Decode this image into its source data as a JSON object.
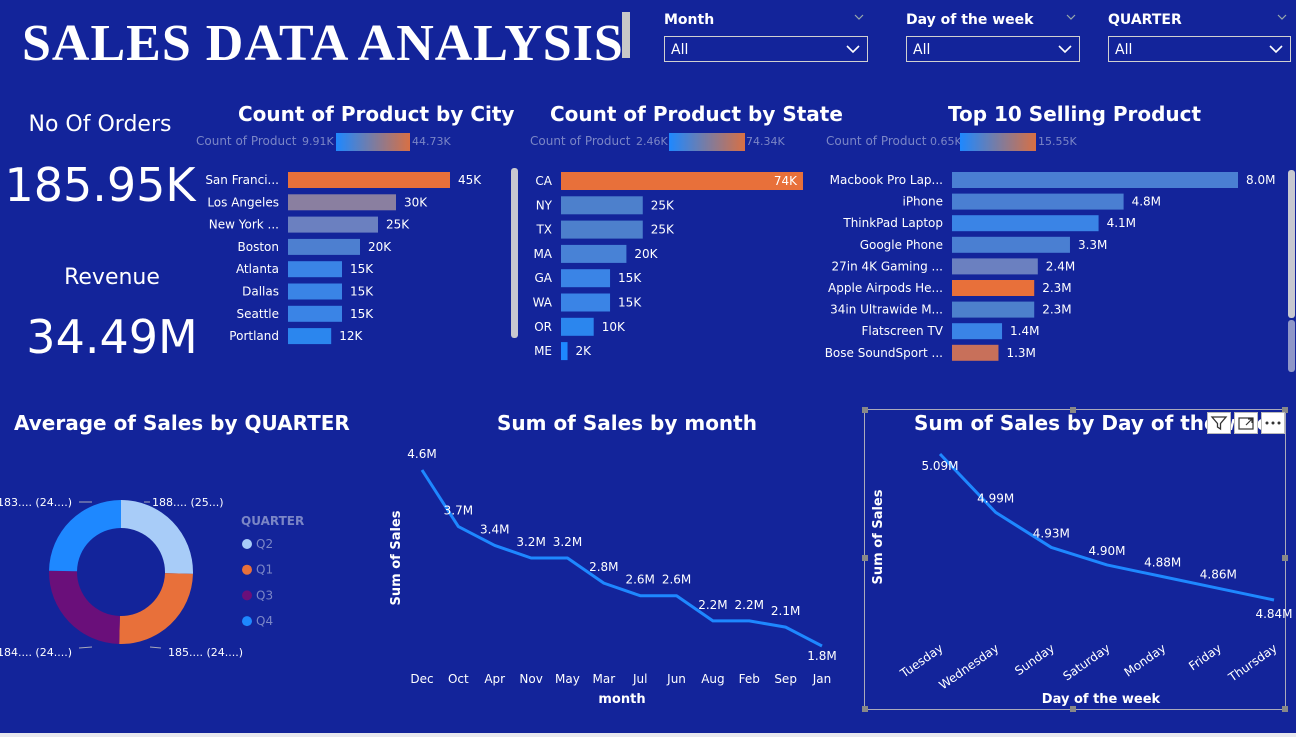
{
  "header": {
    "title": "SALES DATA ANALYSIS"
  },
  "slicers": [
    {
      "label": "Month",
      "value": "All"
    },
    {
      "label": "Day of the week",
      "value": "All"
    },
    {
      "label": "QUARTER",
      "value": "All"
    }
  ],
  "kpis": {
    "orders_label": "No Of Orders",
    "orders_value": "185.95K",
    "revenue_label": "Revenue",
    "revenue_value": "34.49M"
  },
  "colors": {
    "background": "#13249a",
    "high": "#e8703a",
    "low": "#1e88ff",
    "line": "#1e88ff"
  },
  "chart_data": [
    {
      "id": "city",
      "type": "bar",
      "orientation": "horizontal",
      "title": "Count of Product by City",
      "legend": {
        "label": "Count of Product",
        "min": "9.91K",
        "max": "44.73K"
      },
      "categories": [
        "San Franci...",
        "Los Angeles",
        "New York ...",
        "Boston",
        "Atlanta",
        "Dallas",
        "Seattle",
        "Portland"
      ],
      "values": [
        45,
        30,
        25,
        20,
        15,
        15,
        15,
        12
      ],
      "labels": [
        "45K",
        "30K",
        "25K",
        "20K",
        "15K",
        "15K",
        "15K",
        "12K"
      ],
      "colors": [
        "#e8703a",
        "#8a7fa0",
        "#6b80c0",
        "#4d7fd0",
        "#3a84e6",
        "#3a84e6",
        "#3a84e6",
        "#2b86ee"
      ],
      "xlim": [
        0,
        45
      ]
    },
    {
      "id": "state",
      "type": "bar",
      "orientation": "horizontal",
      "title": "Count of Product by State",
      "legend": {
        "label": "Count of Product",
        "min": "2.46K",
        "max": "74.34K"
      },
      "categories": [
        "CA",
        "NY",
        "TX",
        "MA",
        "GA",
        "WA",
        "OR",
        "ME"
      ],
      "values": [
        74,
        25,
        25,
        20,
        15,
        15,
        10,
        2
      ],
      "labels": [
        "74K",
        "25K",
        "25K",
        "20K",
        "15K",
        "15K",
        "10K",
        "2K"
      ],
      "colors": [
        "#e8703a",
        "#4d80cc",
        "#4d80cc",
        "#4882d6",
        "#3a84e6",
        "#3a84e6",
        "#2b86ee",
        "#1e88ff"
      ],
      "xlim": [
        0,
        74
      ]
    },
    {
      "id": "top10",
      "type": "bar",
      "orientation": "horizontal",
      "title": "Top 10 Selling Product",
      "legend": {
        "label": "Count of Product",
        "min": "0.65K",
        "max": "15.55K"
      },
      "categories": [
        "Macbook Pro Lap...",
        "iPhone",
        "ThinkPad Laptop",
        "Google Phone",
        "27in 4K Gaming ...",
        "Apple Airpods He...",
        "34in Ultrawide M...",
        "Flatscreen TV",
        "Bose SoundSport ..."
      ],
      "values": [
        8.0,
        4.8,
        4.1,
        3.3,
        2.4,
        2.3,
        2.3,
        1.4,
        1.3
      ],
      "labels": [
        "8.0M",
        "4.8M",
        "4.1M",
        "3.3M",
        "2.4M",
        "2.3M",
        "2.3M",
        "1.4M",
        "1.3M"
      ],
      "colors": [
        "#4a7fd2",
        "#4a7fd2",
        "#3a84e6",
        "#4a7fd2",
        "#6b80c0",
        "#e8703a",
        "#4d80cc",
        "#3a84e6",
        "#c8705a"
      ],
      "xlim": [
        0,
        8.0
      ]
    },
    {
      "id": "quarter",
      "type": "pie",
      "variant": "donut",
      "title": "Average of Sales by QUARTER",
      "legend_title": "QUARTER",
      "slices": [
        {
          "name": "Q2",
          "value": 188,
          "label": "188.... (25...)",
          "color": "#a8ccf8"
        },
        {
          "name": "Q1",
          "value": 185,
          "label": "185.... (24....)",
          "color": "#e8703a"
        },
        {
          "name": "Q3",
          "value": 184,
          "label": "184.... (24....)",
          "color": "#6a0f7a"
        },
        {
          "name": "Q4",
          "value": 183,
          "label": "183.... (24....)",
          "color": "#1e88ff"
        }
      ],
      "legend": [
        {
          "name": "Q2",
          "color": "#a8ccf8"
        },
        {
          "name": "Q1",
          "color": "#e8703a"
        },
        {
          "name": "Q3",
          "color": "#6a0f7a"
        },
        {
          "name": "Q4",
          "color": "#1e88ff"
        }
      ]
    },
    {
      "id": "month",
      "type": "line",
      "title": "Sum of Sales by month",
      "xlabel": "month",
      "ylabel": "Sum of Sales",
      "x": [
        "Dec",
        "Oct",
        "Apr",
        "Nov",
        "May",
        "Mar",
        "Jul",
        "Jun",
        "Aug",
        "Feb",
        "Sep",
        "Jan"
      ],
      "y": [
        4.6,
        3.7,
        3.4,
        3.2,
        3.2,
        2.8,
        2.6,
        2.6,
        2.2,
        2.2,
        2.1,
        1.8
      ],
      "labels": [
        "4.6M",
        "3.7M",
        "3.4M",
        "3.2M",
        "3.2M",
        "2.8M",
        "2.6M",
        "2.6M",
        "2.2M",
        "2.2M",
        "2.1M",
        "1.8M"
      ]
    },
    {
      "id": "day",
      "type": "line",
      "title": "Sum of Sales by Day of the week",
      "xlabel": "Day of the week",
      "ylabel": "Sum of Sales",
      "x": [
        "Tuesday",
        "Wednesday",
        "Sunday",
        "Saturday",
        "Monday",
        "Friday",
        "Thursday"
      ],
      "y": [
        5.09,
        4.99,
        4.93,
        4.9,
        4.88,
        4.86,
        4.84
      ],
      "labels": [
        "5.09M",
        "4.99M",
        "4.93M",
        "4.90M",
        "4.88M",
        "4.86M",
        "4.84M"
      ]
    }
  ]
}
